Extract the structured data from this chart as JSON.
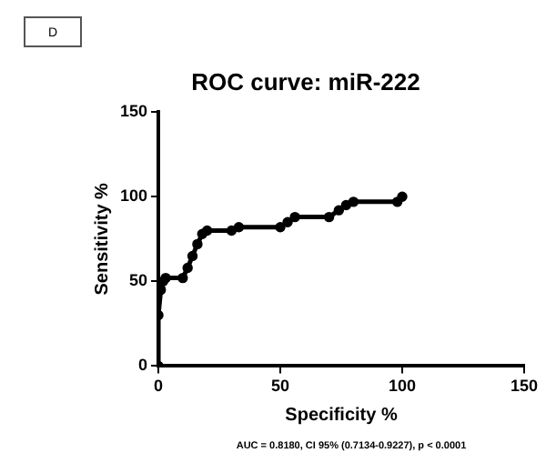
{
  "chart_data": {
    "type": "line",
    "title": "ROC curve: miR-222",
    "xlabel": "Specificity %",
    "ylabel": "Sensitivity %",
    "annotations": [
      "D",
      "AUC = 0.8180, CI 95% (0.7134-0.9227), p < 0.0001"
    ],
    "x": [
      0,
      0,
      1,
      2,
      3,
      10,
      12,
      14,
      16,
      18,
      20,
      30,
      33,
      50,
      53,
      56,
      70,
      74,
      77,
      80,
      98,
      100
    ],
    "series": [
      {
        "color": "#000000",
        "values": [
          0,
          30,
          45,
          50,
          52,
          52,
          58,
          65,
          72,
          78,
          80,
          80,
          82,
          82,
          85,
          88,
          88,
          92,
          95,
          97,
          97,
          100
        ]
      }
    ],
    "xlim": [
      0,
      150
    ],
    "xticks": [
      0,
      50,
      100,
      150
    ],
    "ylim": [
      0,
      150
    ],
    "yticks": [
      0,
      50,
      100,
      150
    ],
    "grid": false,
    "legend": false,
    "marker": "circle",
    "line_style": "solid"
  }
}
